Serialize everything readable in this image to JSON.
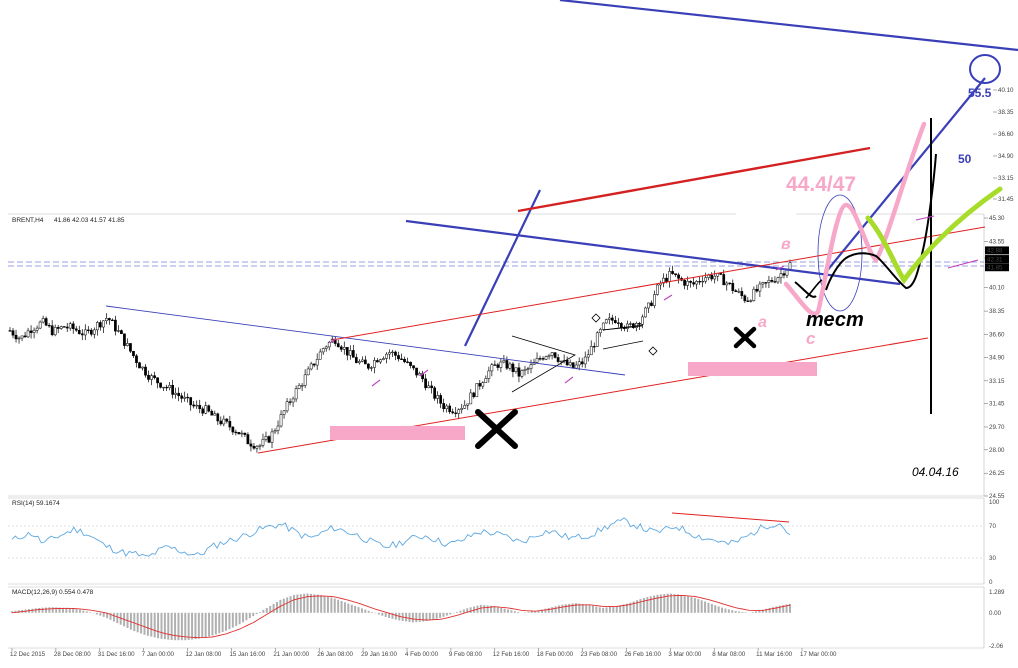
{
  "header": {
    "symbol": "BRENT,H4",
    "ohlc": "41.86 42.03 41.57 41.85"
  },
  "chart_data": [
    {
      "type": "candlestick",
      "symbol": "BRENT",
      "timeframe": "H4",
      "ylim": [
        24.55,
        45.3
      ],
      "y_ticks": [
        "45.30",
        "43.55",
        "42.31",
        "40.10",
        "38.35",
        "36.60",
        "34.90",
        "33.15",
        "31.45",
        "29.70",
        "28.00",
        "26.25",
        "24.55"
      ],
      "upper_ticks": [
        "40.10",
        "38.35",
        "36.60",
        "34.90",
        "33.15",
        "31.45",
        "29.70"
      ],
      "price_badges": [
        "42.88",
        "42.31",
        "41.85"
      ],
      "x_ticks": [
        "12 Dec 2015",
        "28 Dec 08:00",
        "31 Dec 16:00",
        "7 Jan 00:00",
        "12 Jan 08:00",
        "15 Jan 16:00",
        "21 Jan 00:00",
        "26 Jan 08:00",
        "29 Jan 16:00",
        "4 Feb 00:00",
        "9 Feb 08:00",
        "12 Feb 16:00",
        "18 Feb 00:00",
        "23 Feb 08:00",
        "26 Feb 16:00",
        "3 Mar 00:00",
        "8 Mar 08:00",
        "11 Mar 16:00",
        "17 Mar 00:00"
      ],
      "close_path": [
        36.9,
        36.3,
        37.1,
        37.5,
        36.8,
        37.2,
        37.0,
        36.6,
        37.3,
        37.9,
        36.8,
        35.5,
        34.3,
        33.4,
        32.9,
        32.4,
        31.8,
        31.2,
        31.0,
        30.3,
        29.9,
        29.4,
        28.6,
        28.3,
        28.9,
        30.4,
        31.9,
        33.1,
        34.4,
        35.7,
        36.3,
        35.4,
        34.6,
        34.2,
        34.9,
        35.3,
        34.9,
        34.1,
        33.4,
        32.2,
        31.3,
        31.0,
        31.4,
        32.5,
        33.7,
        34.4,
        34.3,
        33.6,
        34.1,
        34.9,
        35.4,
        34.5,
        34.1,
        34.6,
        36.1,
        37.5,
        37.8,
        37.1,
        37.6,
        38.7,
        40.4,
        41.1,
        40.6,
        40.3,
        40.9,
        41.0,
        40.6,
        39.8,
        39.2,
        39.9,
        40.5,
        41.0,
        41.85
      ],
      "annotations": [
        "44.4/47",
        "55.5",
        "50",
        "в",
        "а",
        "с",
        "тест",
        "04.04.16"
      ]
    },
    {
      "type": "line",
      "title": "RSI(14) 59.1674",
      "ylim": [
        0,
        100
      ],
      "y_ticks": [
        "100",
        "70",
        "30",
        "0"
      ],
      "values": [
        52,
        58,
        61,
        48,
        55,
        60,
        66,
        62,
        54,
        45,
        40,
        36,
        35,
        30,
        38,
        44,
        40,
        36,
        33,
        42,
        48,
        52,
        56,
        61,
        66,
        70,
        72,
        65,
        58,
        55,
        62,
        68,
        64,
        60,
        54,
        48,
        44,
        47,
        52,
        56,
        58,
        52,
        47,
        50,
        56,
        63,
        62,
        59,
        55,
        50,
        55,
        62,
        64,
        58,
        55,
        57,
        60,
        67,
        73,
        76,
        72,
        66,
        62,
        65,
        70,
        64,
        58,
        54,
        52,
        47,
        51,
        58,
        66,
        72,
        74,
        59.17
      ]
    },
    {
      "type": "bar",
      "title": "MACD(12,26,9) 0.554 0.478",
      "ylim": [
        -2.06,
        1.289
      ],
      "y_ticks": [
        "1.289",
        "0.00",
        "-2.06"
      ],
      "macd": [
        0.1,
        0.2,
        0.3,
        0.35,
        0.3,
        0.2,
        0.0,
        -0.3,
        -0.7,
        -1.1,
        -1.4,
        -1.6,
        -1.7,
        -1.7,
        -1.6,
        -1.4,
        -1.1,
        -0.7,
        -0.2,
        0.3,
        0.8,
        1.1,
        1.2,
        1.1,
        0.9,
        0.6,
        0.3,
        0.0,
        -0.3,
        -0.5,
        -0.6,
        -0.5,
        -0.3,
        0.0,
        0.3,
        0.5,
        0.4,
        0.2,
        0.0,
        0.1,
        0.3,
        0.5,
        0.6,
        0.5,
        0.3,
        0.4,
        0.6,
        0.9,
        1.1,
        1.2,
        1.1,
        0.9,
        0.6,
        0.3,
        0.1,
        0.0,
        0.2,
        0.4,
        0.55
      ],
      "signal": [
        0.0,
        0.1,
        0.2,
        0.25,
        0.28,
        0.25,
        0.15,
        0.0,
        -0.3,
        -0.6,
        -0.9,
        -1.2,
        -1.4,
        -1.5,
        -1.55,
        -1.5,
        -1.3,
        -1.0,
        -0.6,
        -0.1,
        0.4,
        0.8,
        1.0,
        1.05,
        1.0,
        0.8,
        0.55,
        0.25,
        0.0,
        -0.25,
        -0.4,
        -0.45,
        -0.4,
        -0.2,
        0.05,
        0.3,
        0.38,
        0.3,
        0.15,
        0.1,
        0.2,
        0.35,
        0.48,
        0.5,
        0.4,
        0.38,
        0.5,
        0.7,
        0.9,
        1.05,
        1.08,
        1.0,
        0.8,
        0.55,
        0.3,
        0.15,
        0.15,
        0.3,
        0.48
      ]
    }
  ],
  "colors": {
    "candle": "#000000",
    "rsi": "#5fa8e0",
    "macd_hist": "#b0b0b0",
    "signal": "#e03030",
    "blue_line": "#3a3fb8",
    "red_line": "#e02020",
    "pink": "#f7a8c8",
    "green": "#a8dc2a",
    "badge": "#000000"
  }
}
